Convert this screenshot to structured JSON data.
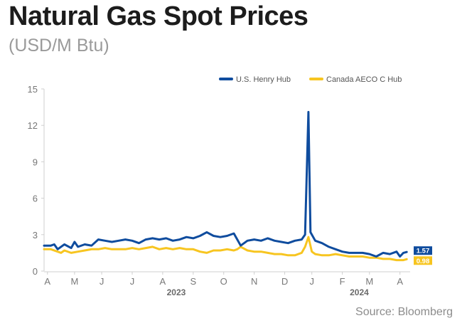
{
  "header": {
    "title": "Natural Gas Spot Prices",
    "subtitle": "(USD/M Btu)"
  },
  "footer": {
    "source": "Source: Bloomberg"
  },
  "chart_data": {
    "type": "line",
    "title": "Natural Gas Spot Prices",
    "subtitle": "(USD/M Btu)",
    "xlabel": "",
    "ylabel": "",
    "ylim": [
      0,
      15
    ],
    "yticks": [
      0,
      3,
      6,
      9,
      12,
      15
    ],
    "xlim": [
      0,
      54
    ],
    "x_tick_labels": [
      "A",
      "M",
      "J",
      "J",
      "A",
      "S",
      "O",
      "N",
      "D",
      "J",
      "F",
      "M",
      "A"
    ],
    "x_tick_positions": [
      0.5,
      4.5,
      8.5,
      13.0,
      17.5,
      22.0,
      26.5,
      31.0,
      35.5,
      39.5,
      44.0,
      48.0,
      52.5
    ],
    "year_labels": [
      {
        "label": "2023",
        "x": 19.5
      },
      {
        "label": "2024",
        "x": 46.5
      }
    ],
    "grid": false,
    "legend": "top-right",
    "colors": {
      "henry": "#0f4c9e",
      "aeco": "#f7c520"
    },
    "series": [
      {
        "name": "U.S. Henry Hub",
        "color": "#0f4c9e",
        "end_label": "1.57",
        "points": [
          [
            0,
            2.1
          ],
          [
            1,
            2.1
          ],
          [
            1.5,
            2.2
          ],
          [
            2,
            1.8
          ],
          [
            3,
            2.2
          ],
          [
            4,
            1.9
          ],
          [
            4.5,
            2.4
          ],
          [
            5,
            2.0
          ],
          [
            6,
            2.2
          ],
          [
            7,
            2.1
          ],
          [
            8,
            2.6
          ],
          [
            9,
            2.5
          ],
          [
            10,
            2.4
          ],
          [
            11,
            2.5
          ],
          [
            12,
            2.6
          ],
          [
            13,
            2.5
          ],
          [
            14,
            2.3
          ],
          [
            15,
            2.6
          ],
          [
            16,
            2.7
          ],
          [
            17,
            2.6
          ],
          [
            18,
            2.7
          ],
          [
            19,
            2.5
          ],
          [
            20,
            2.6
          ],
          [
            21,
            2.8
          ],
          [
            22,
            2.7
          ],
          [
            23,
            2.9
          ],
          [
            24,
            3.2
          ],
          [
            25,
            2.9
          ],
          [
            26,
            2.8
          ],
          [
            27,
            2.9
          ],
          [
            28,
            3.1
          ],
          [
            28.5,
            2.6
          ],
          [
            29,
            2.1
          ],
          [
            30,
            2.5
          ],
          [
            31,
            2.6
          ],
          [
            32,
            2.5
          ],
          [
            33,
            2.7
          ],
          [
            34,
            2.5
          ],
          [
            35,
            2.4
          ],
          [
            36,
            2.3
          ],
          [
            37,
            2.5
          ],
          [
            38,
            2.6
          ],
          [
            38.5,
            3.0
          ],
          [
            39,
            13.1
          ],
          [
            39.3,
            3.2
          ],
          [
            40,
            2.5
          ],
          [
            41,
            2.3
          ],
          [
            42,
            2.0
          ],
          [
            43,
            1.8
          ],
          [
            44,
            1.6
          ],
          [
            45,
            1.5
          ],
          [
            46,
            1.5
          ],
          [
            47,
            1.5
          ],
          [
            48,
            1.4
          ],
          [
            49,
            1.2
          ],
          [
            50,
            1.5
          ],
          [
            51,
            1.4
          ],
          [
            52,
            1.6
          ],
          [
            52.5,
            1.2
          ],
          [
            53,
            1.5
          ],
          [
            53.5,
            1.57
          ]
        ]
      },
      {
        "name": "Canada AECO C Hub",
        "color": "#f7c520",
        "end_label": "0.98",
        "points": [
          [
            0,
            1.8
          ],
          [
            1,
            1.8
          ],
          [
            2,
            1.6
          ],
          [
            2.5,
            1.5
          ],
          [
            3,
            1.7
          ],
          [
            4,
            1.5
          ],
          [
            5,
            1.6
          ],
          [
            6,
            1.7
          ],
          [
            7,
            1.8
          ],
          [
            8,
            1.8
          ],
          [
            9,
            1.9
          ],
          [
            10,
            1.8
          ],
          [
            11,
            1.8
          ],
          [
            12,
            1.8
          ],
          [
            13,
            1.9
          ],
          [
            14,
            1.8
          ],
          [
            15,
            1.9
          ],
          [
            16,
            2.0
          ],
          [
            17,
            1.8
          ],
          [
            18,
            1.9
          ],
          [
            19,
            1.8
          ],
          [
            20,
            1.9
          ],
          [
            21,
            1.8
          ],
          [
            22,
            1.8
          ],
          [
            23,
            1.6
          ],
          [
            24,
            1.5
          ],
          [
            25,
            1.7
          ],
          [
            26,
            1.7
          ],
          [
            27,
            1.8
          ],
          [
            28,
            1.7
          ],
          [
            28.5,
            1.8
          ],
          [
            29,
            2.0
          ],
          [
            30,
            1.7
          ],
          [
            31,
            1.6
          ],
          [
            32,
            1.6
          ],
          [
            33,
            1.5
          ],
          [
            34,
            1.4
          ],
          [
            35,
            1.4
          ],
          [
            36,
            1.3
          ],
          [
            37,
            1.3
          ],
          [
            38,
            1.5
          ],
          [
            38.5,
            2.0
          ],
          [
            39,
            2.8
          ],
          [
            39.5,
            1.6
          ],
          [
            40,
            1.4
          ],
          [
            41,
            1.3
          ],
          [
            42,
            1.3
          ],
          [
            43,
            1.4
          ],
          [
            44,
            1.3
          ],
          [
            45,
            1.2
          ],
          [
            46,
            1.2
          ],
          [
            47,
            1.2
          ],
          [
            48,
            1.1
          ],
          [
            49,
            1.1
          ],
          [
            50,
            1.0
          ],
          [
            51,
            1.0
          ],
          [
            52,
            0.9
          ],
          [
            53,
            0.9
          ],
          [
            53.5,
            0.98
          ]
        ]
      }
    ]
  }
}
